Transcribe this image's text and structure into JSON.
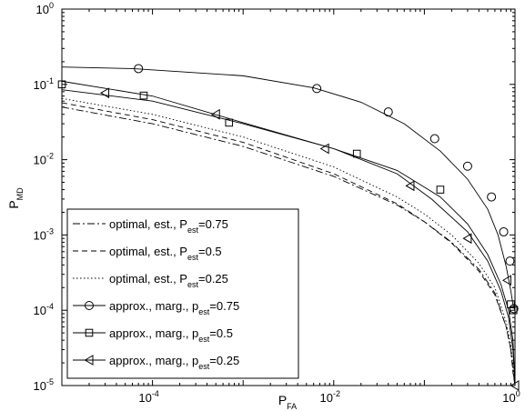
{
  "chart_data": {
    "type": "line",
    "title": "",
    "xlabel": {
      "main": "P",
      "sub": "FA"
    },
    "ylabel": {
      "main": "P",
      "sub": "MD"
    },
    "xscale": "log",
    "yscale": "log",
    "xlim": [
      1e-05,
      1
    ],
    "ylim": [
      1e-05,
      1
    ],
    "grid": false,
    "legend_position": "bottom-left",
    "x_ticks": [
      {
        "value": 0.0001,
        "base": "10",
        "exp": "-4"
      },
      {
        "value": 0.01,
        "base": "10",
        "exp": "-2"
      },
      {
        "value": 1,
        "base": "10",
        "exp": "0"
      }
    ],
    "y_ticks": [
      {
        "value": 1e-05,
        "base": "10",
        "exp": "-5"
      },
      {
        "value": 0.0001,
        "base": "10",
        "exp": "-4"
      },
      {
        "value": 0.001,
        "base": "10",
        "exp": "-3"
      },
      {
        "value": 0.01,
        "base": "10",
        "exp": "-2"
      },
      {
        "value": 0.1,
        "base": "10",
        "exp": "-1"
      },
      {
        "value": 1,
        "base": "10",
        "exp": "0"
      }
    ],
    "series": [
      {
        "name": "optimal, est., P_est=0.75",
        "label": {
          "text": "optimal, est., P",
          "sub": "est",
          "suffix": "=0.75"
        },
        "dash": "8,3,2,3",
        "marker": "none",
        "x": [
          1e-05,
          0.0001,
          0.001,
          0.01,
          0.05,
          0.1,
          0.2,
          0.4,
          0.6,
          0.8,
          0.9,
          0.95,
          1.0
        ],
        "y": [
          0.05,
          0.03,
          0.015,
          0.006,
          0.0025,
          0.0015,
          0.0008,
          0.00035,
          0.00017,
          6e-05,
          3e-05,
          1.6e-05,
          1e-05
        ]
      },
      {
        "name": "optimal, est., P_est=0.5",
        "label": {
          "text": "optimal, est., P",
          "sub": "est",
          "suffix": "=0.5"
        },
        "dash": "6,4",
        "marker": "none",
        "x": [
          1e-05,
          0.0001,
          0.001,
          0.01,
          0.05,
          0.1,
          0.2,
          0.4,
          0.6,
          0.8,
          0.9,
          0.95,
          1.0
        ],
        "y": [
          0.057,
          0.034,
          0.017,
          0.0065,
          0.0026,
          0.0015,
          0.00078,
          0.00033,
          0.00016,
          6e-05,
          3e-05,
          1.5e-05,
          1e-05
        ]
      },
      {
        "name": "optimal, est., P_est=0.25",
        "label": {
          "text": "optimal, est., P",
          "sub": "est",
          "suffix": "=0.25"
        },
        "dash": "1.5,2.5",
        "marker": "none",
        "x": [
          1e-05,
          0.0001,
          0.001,
          0.01,
          0.05,
          0.1,
          0.2,
          0.4,
          0.6,
          0.8,
          0.9,
          0.95,
          1.0
        ],
        "y": [
          0.065,
          0.04,
          0.02,
          0.008,
          0.0032,
          0.0019,
          0.001,
          0.00042,
          0.0002,
          7e-05,
          3.5e-05,
          1.8e-05,
          1e-05
        ]
      },
      {
        "name": "approx., marg., p_est=0.75",
        "label": {
          "text": "approx., marg., p",
          "sub": "est",
          "suffix": "=0.75"
        },
        "dash": "",
        "marker": "circle",
        "x": [
          1e-05,
          6e-05,
          0.001,
          0.006,
          0.02,
          0.06,
          0.15,
          0.3,
          0.5,
          0.65,
          0.8,
          0.9,
          0.96,
          1.0
        ],
        "y": [
          0.17,
          0.162,
          0.13,
          0.09,
          0.058,
          0.03,
          0.013,
          0.0055,
          0.0022,
          0.001,
          0.00038,
          0.00018,
          0.00011,
          0.0001
        ],
        "markers_x": [
          7e-05,
          0.0065,
          0.04,
          0.13,
          0.3,
          0.55,
          0.75,
          0.88,
          0.97
        ],
        "markers_y": [
          0.162,
          0.088,
          0.043,
          0.019,
          0.0082,
          0.0032,
          0.0011,
          0.00045,
          0.000105
        ]
      },
      {
        "name": "approx., marg., p_est=0.5",
        "label": {
          "text": "approx., marg., p",
          "sub": "est",
          "suffix": "=0.5"
        },
        "dash": "",
        "marker": "square",
        "x": [
          1e-05,
          0.0001,
          0.001,
          0.01,
          0.05,
          0.15,
          0.3,
          0.5,
          0.7,
          0.85,
          0.95,
          1.0
        ],
        "y": [
          0.11,
          0.07,
          0.031,
          0.014,
          0.0072,
          0.0032,
          0.0014,
          0.00055,
          0.00022,
          0.0001,
          4e-05,
          1e-05
        ],
        "markers_x": [
          1e-05,
          8e-05,
          0.0007,
          0.018,
          0.15,
          0.9,
          0.96
        ],
        "markers_y": [
          0.1,
          0.071,
          0.031,
          0.012,
          0.004,
          0.00012,
          0.0001
        ]
      },
      {
        "name": "approx., marg., p_est=0.25",
        "label": {
          "text": "approx., marg., p",
          "sub": "est",
          "suffix": "=0.25"
        },
        "dash": "",
        "marker": "triangle",
        "x": [
          1e-05,
          0.0001,
          0.001,
          0.01,
          0.05,
          0.12,
          0.3,
          0.5,
          0.7,
          0.85,
          0.95,
          1.0
        ],
        "y": [
          0.085,
          0.06,
          0.03,
          0.014,
          0.0065,
          0.003,
          0.0011,
          0.00045,
          0.00018,
          8e-05,
          3e-05,
          1e-05
        ],
        "markers_x": [
          3e-05,
          0.0005,
          0.008,
          0.07,
          0.3,
          0.82,
          1.0
        ],
        "markers_y": [
          0.077,
          0.04,
          0.014,
          0.0045,
          0.0009,
          0.00025,
          1e-05
        ]
      }
    ]
  }
}
